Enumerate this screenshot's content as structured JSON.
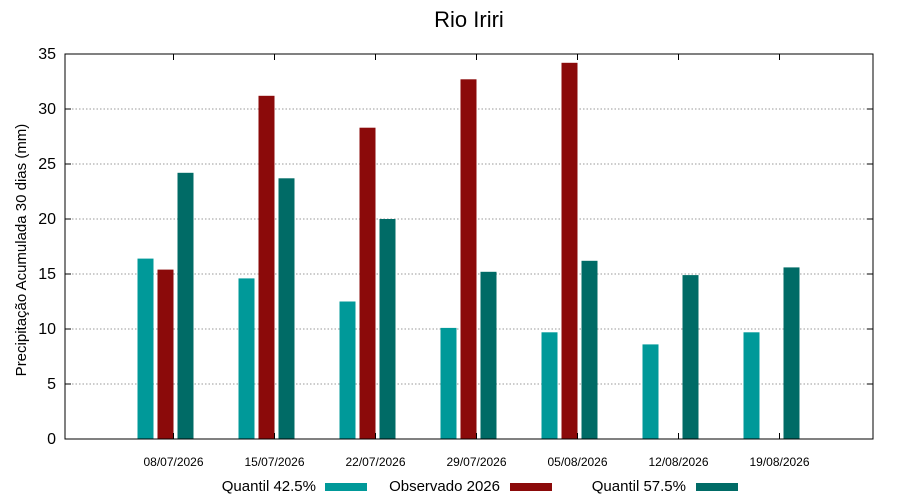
{
  "chart_data": {
    "type": "bar",
    "title": "Rio Iriri",
    "xlabel": "",
    "ylabel": "Precipitação Acumulada 30 dias (mm)",
    "ylim": [
      0,
      35
    ],
    "yticks": [
      0,
      5,
      10,
      15,
      20,
      25,
      30,
      35
    ],
    "grid": true,
    "legend_position": "bottom",
    "categories": [
      "08/07/2026",
      "15/07/2026",
      "22/07/2026",
      "29/07/2026",
      "05/08/2026",
      "12/08/2026",
      "19/08/2026"
    ],
    "series": [
      {
        "name": "Quantil 42.5%",
        "color": "#009999",
        "values": [
          16.4,
          14.6,
          12.5,
          10.1,
          9.7,
          8.6,
          9.7
        ]
      },
      {
        "name": "Observado 2026",
        "color": "#8B0A0A",
        "values": [
          15.4,
          31.2,
          28.3,
          32.7,
          34.2,
          null,
          null
        ]
      },
      {
        "name": "Quantil 57.5%",
        "color": "#006B66",
        "values": [
          24.2,
          23.7,
          20.0,
          15.2,
          16.2,
          14.9,
          15.6
        ]
      }
    ]
  }
}
